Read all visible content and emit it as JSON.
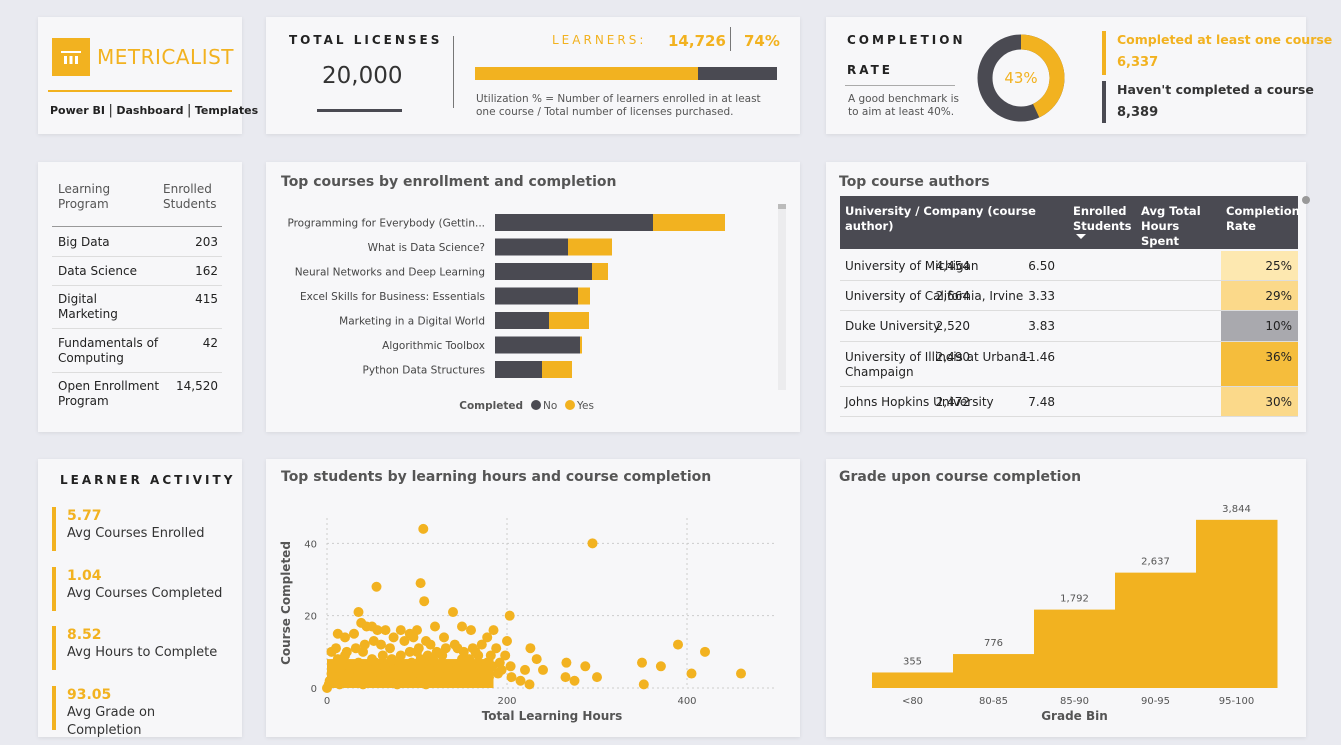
{
  "logo": {
    "name": "METRICALIST",
    "nav": [
      "Power BI",
      "Dashboard",
      "Templates"
    ],
    "sep": "|"
  },
  "licenses": {
    "label": "TOTAL LICENSES",
    "value": "20,000"
  },
  "learners": {
    "label": "LEARNERS:",
    "value": "14,726",
    "pct": "74%",
    "fraction": 0.74,
    "note": "Utilization % = Number of learners enrolled in at least one course / Total number of licenses purchased."
  },
  "completion": {
    "label_1": "COMPLETION",
    "label_2": "RATE",
    "note": "A good benchmark is to aim at least 40%.",
    "pct": "43%",
    "fraction": 0.43,
    "completed_label": "Completed at least one course",
    "completed_value": "6,337",
    "not_completed_label": "Haven't completed a course",
    "not_completed_value": "8,389"
  },
  "programs": {
    "header_program": "Learning Program",
    "header_students": "Enrolled Students",
    "rows": [
      {
        "name": "Big Data",
        "value": "203"
      },
      {
        "name": "Data Science",
        "value": "162"
      },
      {
        "name": "Digital Marketing",
        "value": "415"
      },
      {
        "name": "Fundamentals of Computing",
        "value": "42"
      },
      {
        "name": "Open Enrollment Program",
        "value": "14,520"
      }
    ]
  },
  "authors": {
    "title": "Top course authors",
    "columns": [
      "University / Company (course author)",
      "Enrolled Students",
      "Avg Total Hours Spent",
      "Completion Rate"
    ],
    "rows": [
      {
        "name": "University of Michigan",
        "students": "4,454",
        "hours": "6.50",
        "rate": "25%",
        "color": "#fde8b0"
      },
      {
        "name": "University of California, Irvine",
        "students": "2,664",
        "hours": "3.33",
        "rate": "29%",
        "color": "#fbd98a"
      },
      {
        "name": "Duke University",
        "students": "2,520",
        "hours": "3.83",
        "rate": "10%",
        "color": "#a9a9ae"
      },
      {
        "name": "University of Illinois at Urbana-Champaign",
        "students": "2,490",
        "hours": "11.46",
        "rate": "36%",
        "color": "#f5bd3c"
      },
      {
        "name": "Johns Hopkins University",
        "students": "2,472",
        "hours": "7.48",
        "rate": "30%",
        "color": "#fbd98a"
      }
    ]
  },
  "activity": {
    "title": "LEARNER ACTIVITY",
    "items": [
      {
        "value": "5.77",
        "label": "Avg Courses Enrolled"
      },
      {
        "value": "1.04",
        "label": "Avg Courses Completed"
      },
      {
        "value": "8.52",
        "label": "Avg Hours to Complete"
      },
      {
        "value": "93.05",
        "label": "Avg Grade on Completion"
      }
    ]
  },
  "colors": {
    "gold": "#f2b220",
    "dark": "#4a4a52"
  },
  "chart_data": [
    {
      "type": "bar",
      "orientation": "horizontal",
      "stacked": true,
      "title": "Top courses by enrollment and completion",
      "categories": [
        "Programming for Everybody (Gettin...",
        "What is Data Science?",
        "Neural Networks and Deep Learning",
        "Excel Skills for Business: Essentials",
        "Marketing in a Digital World",
        "Algorithmic Toolbox",
        "Python Data Structures"
      ],
      "series": [
        {
          "name": "No",
          "color": "#4a4a52",
          "values": [
            1580,
            730,
            970,
            830,
            540,
            850,
            470
          ]
        },
        {
          "name": "Yes",
          "color": "#f2b220",
          "values": [
            720,
            440,
            160,
            120,
            400,
            20,
            300
          ]
        }
      ],
      "legend_title": "Completed",
      "legend": "bottom"
    },
    {
      "type": "scatter",
      "title": "Top students by learning hours and course completion",
      "xlabel": "Total Learning Hours",
      "ylabel": "Course Completed",
      "xlim": [
        0,
        500
      ],
      "ylim": [
        0,
        47
      ],
      "xticks": [
        0,
        200,
        400
      ],
      "yticks": [
        0,
        20,
        40
      ],
      "points": [
        [
          107,
          44
        ],
        [
          295,
          40
        ],
        [
          55,
          28
        ],
        [
          104,
          29
        ],
        [
          108,
          24
        ],
        [
          35,
          21
        ],
        [
          140,
          21
        ],
        [
          203,
          20
        ],
        [
          38,
          18
        ],
        [
          44,
          17
        ],
        [
          50,
          17
        ],
        [
          56,
          16
        ],
        [
          65,
          16
        ],
        [
          82,
          16
        ],
        [
          92,
          15
        ],
        [
          100,
          16
        ],
        [
          120,
          17
        ],
        [
          150,
          17
        ],
        [
          160,
          16
        ],
        [
          185,
          16
        ],
        [
          12,
          15
        ],
        [
          20,
          14
        ],
        [
          30,
          15
        ],
        [
          74,
          14
        ],
        [
          86,
          13
        ],
        [
          96,
          14
        ],
        [
          110,
          13
        ],
        [
          130,
          14
        ],
        [
          178,
          14
        ],
        [
          200,
          13
        ],
        [
          390,
          12
        ],
        [
          10,
          11
        ],
        [
          60,
          12
        ],
        [
          70,
          11
        ],
        [
          115,
          12
        ],
        [
          145,
          11
        ],
        [
          188,
          11
        ],
        [
          226,
          11
        ],
        [
          420,
          10
        ],
        [
          5,
          10
        ],
        [
          40,
          10
        ],
        [
          100,
          10
        ],
        [
          165,
          10
        ],
        [
          198,
          9
        ],
        [
          233,
          8
        ],
        [
          266,
          7
        ],
        [
          287,
          6
        ],
        [
          350,
          7
        ],
        [
          371,
          6
        ],
        [
          405,
          4
        ],
        [
          460,
          4
        ],
        [
          300,
          3
        ],
        [
          275,
          2
        ],
        [
          352,
          1
        ],
        [
          265,
          3
        ],
        [
          240,
          5
        ],
        [
          220,
          5
        ],
        [
          170,
          6
        ],
        [
          80,
          7
        ],
        [
          50,
          8
        ],
        [
          20,
          9
        ],
        [
          150,
          8
        ],
        [
          120,
          6
        ],
        [
          90,
          5
        ],
        [
          60,
          4
        ],
        [
          30,
          3
        ],
        [
          10,
          2
        ],
        [
          180,
          3
        ],
        [
          140,
          2
        ],
        [
          110,
          1
        ],
        [
          70,
          2
        ],
        [
          40,
          1
        ],
        [
          15,
          5
        ],
        [
          25,
          6
        ],
        [
          35,
          7
        ],
        [
          45,
          5
        ],
        [
          55,
          6
        ],
        [
          65,
          5
        ],
        [
          75,
          4
        ],
        [
          85,
          3
        ],
        [
          95,
          2
        ],
        [
          105,
          3
        ],
        [
          115,
          4
        ],
        [
          125,
          5
        ],
        [
          135,
          3
        ],
        [
          145,
          4
        ],
        [
          155,
          3
        ],
        [
          160,
          5
        ],
        [
          175,
          2
        ],
        [
          190,
          4
        ],
        [
          205,
          3
        ],
        [
          215,
          2
        ],
        [
          225,
          1
        ],
        [
          5,
          4
        ],
        [
          8,
          6
        ],
        [
          18,
          3
        ],
        [
          28,
          2
        ],
        [
          38,
          4
        ],
        [
          48,
          3
        ],
        [
          58,
          2
        ],
        [
          68,
          3
        ],
        [
          78,
          1
        ],
        [
          88,
          4
        ],
        [
          98,
          6
        ],
        [
          108,
          7
        ],
        [
          118,
          8
        ],
        [
          128,
          9
        ],
        [
          138,
          6
        ],
        [
          148,
          7
        ],
        [
          158,
          8
        ],
        [
          168,
          9
        ],
        [
          178,
          7
        ],
        [
          2,
          1
        ],
        [
          12,
          8
        ],
        [
          22,
          10
        ],
        [
          32,
          11
        ],
        [
          42,
          12
        ],
        [
          52,
          13
        ],
        [
          62,
          9
        ],
        [
          72,
          8
        ],
        [
          82,
          9
        ],
        [
          92,
          10
        ],
        [
          102,
          11
        ],
        [
          112,
          9
        ],
        [
          122,
          10
        ],
        [
          132,
          11
        ],
        [
          142,
          12
        ],
        [
          152,
          10
        ],
        [
          162,
          11
        ],
        [
          172,
          12
        ],
        [
          182,
          9
        ],
        [
          192,
          7
        ],
        [
          0,
          0
        ],
        [
          3,
          2
        ],
        [
          7,
          3
        ],
        [
          14,
          1
        ],
        [
          24,
          4
        ],
        [
          34,
          5
        ],
        [
          44,
          6
        ],
        [
          54,
          7
        ],
        [
          64,
          6
        ],
        [
          74,
          5
        ],
        [
          84,
          6
        ],
        [
          94,
          7
        ],
        [
          104,
          8
        ],
        [
          114,
          5
        ],
        [
          124,
          4
        ],
        [
          134,
          6
        ],
        [
          144,
          5
        ],
        [
          154,
          6
        ],
        [
          164,
          4
        ],
        [
          174,
          5
        ],
        [
          184,
          6
        ],
        [
          194,
          5
        ],
        [
          204,
          6
        ]
      ]
    },
    {
      "type": "bar",
      "title": "Grade upon course completion",
      "xlabel": "Grade Bin",
      "ylabel": "",
      "categories": [
        "<80",
        "80-85",
        "85-90",
        "90-95",
        "95-100"
      ],
      "values": [
        355,
        776,
        1792,
        2637,
        3844
      ],
      "labels": [
        "355",
        "776",
        "1,792",
        "2,637",
        "3,844"
      ],
      "ylim": [
        0,
        4000
      ]
    }
  ]
}
